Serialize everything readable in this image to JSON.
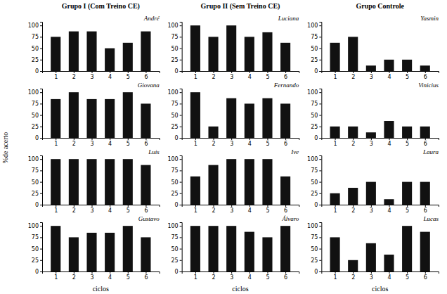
{
  "chart_data": [
    {
      "type": "bar",
      "title": "Grupo I (Com Treino CE)",
      "subtitle": "André",
      "ylabel": "%de acerto",
      "x": [
        1,
        2,
        3,
        4,
        5,
        6
      ],
      "values": [
        75,
        87,
        87,
        50,
        62,
        87
      ],
      "color": "#111111",
      "xlim": [
        0.25,
        6.75
      ],
      "xticks": [
        1,
        2,
        3,
        4,
        5,
        6
      ],
      "ylim": [
        0,
        108
      ],
      "yticks": [
        0,
        25,
        50,
        75,
        100
      ]
    },
    {
      "type": "bar",
      "subtitle": "Giovana",
      "x": [
        1,
        2,
        3,
        4,
        5,
        6
      ],
      "values": [
        85,
        100,
        85,
        85,
        100,
        75
      ],
      "color": "#111111",
      "xlim": [
        0.25,
        6.75
      ],
      "xticks": [
        1,
        2,
        3,
        4,
        5,
        6
      ],
      "ylim": [
        0,
        108
      ],
      "yticks": [
        0,
        25,
        50,
        75,
        100
      ]
    },
    {
      "type": "bar",
      "subtitle": "Luis",
      "x": [
        1,
        2,
        3,
        4,
        5,
        6
      ],
      "values": [
        100,
        100,
        100,
        100,
        100,
        87
      ],
      "color": "#111111",
      "xlim": [
        0.25,
        6.75
      ],
      "xticks": [
        1,
        2,
        3,
        4,
        5,
        6
      ],
      "ylim": [
        0,
        108
      ],
      "yticks": [
        0,
        25,
        50,
        75,
        100
      ]
    },
    {
      "type": "bar",
      "subtitle": "Gustavo",
      "xlabel": "ciclos",
      "x": [
        1,
        2,
        3,
        4,
        5,
        6
      ],
      "values": [
        100,
        75,
        85,
        85,
        100,
        75
      ],
      "color": "#111111",
      "xlim": [
        0.25,
        6.75
      ],
      "xticks": [
        1,
        2,
        3,
        4,
        5,
        6
      ],
      "ylim": [
        0,
        108
      ],
      "yticks": [
        0,
        25,
        50,
        75,
        100
      ]
    },
    {
      "type": "bar",
      "title": "Grupo II (Sem Treino CE)",
      "subtitle": "Luciana",
      "x": [
        1,
        2,
        3,
        4,
        5,
        6
      ],
      "values": [
        100,
        75,
        100,
        75,
        85,
        62
      ],
      "color": "#111111",
      "xlim": [
        0.25,
        6.75
      ],
      "xticks": [
        1,
        2,
        3,
        4,
        5,
        6
      ],
      "ylim": [
        0,
        108
      ],
      "yticks": [
        0,
        25,
        50,
        75,
        100
      ]
    },
    {
      "type": "bar",
      "subtitle": "Fernando",
      "x": [
        1,
        2,
        3,
        4,
        5,
        6
      ],
      "values": [
        100,
        25,
        87,
        75,
        87,
        75
      ],
      "color": "#111111",
      "xlim": [
        0.25,
        6.75
      ],
      "xticks": [
        1,
        2,
        3,
        4,
        5,
        6
      ],
      "ylim": [
        0,
        108
      ],
      "yticks": [
        0,
        25,
        50,
        75,
        100
      ]
    },
    {
      "type": "bar",
      "subtitle": "Ive",
      "x": [
        1,
        2,
        3,
        4,
        5,
        6
      ],
      "values": [
        62,
        87,
        100,
        100,
        100,
        62
      ],
      "color": "#111111",
      "xlim": [
        0.25,
        6.75
      ],
      "xticks": [
        1,
        2,
        3,
        4,
        5,
        6
      ],
      "ylim": [
        0,
        108
      ],
      "yticks": [
        0,
        25,
        50,
        75,
        100
      ]
    },
    {
      "type": "bar",
      "subtitle": "Álvaro",
      "xlabel": "ciclos",
      "x": [
        1,
        2,
        3,
        4,
        5,
        6
      ],
      "values": [
        100,
        100,
        100,
        87,
        75,
        100
      ],
      "color": "#111111",
      "xlim": [
        0.25,
        6.75
      ],
      "xticks": [
        1,
        2,
        3,
        4,
        5,
        6
      ],
      "ylim": [
        0,
        108
      ],
      "yticks": [
        0,
        25,
        50,
        75,
        100
      ]
    },
    {
      "type": "bar",
      "title": "Grupo Controle",
      "subtitle": "Yasmin",
      "x": [
        1,
        2,
        3,
        4,
        5,
        6
      ],
      "values": [
        62,
        75,
        12,
        25,
        25,
        12
      ],
      "color": "#111111",
      "xlim": [
        0.25,
        6.75
      ],
      "xticks": [
        1,
        2,
        3,
        4,
        5,
        6
      ],
      "ylim": [
        0,
        108
      ],
      "yticks": [
        0,
        25,
        50,
        75,
        100
      ]
    },
    {
      "type": "bar",
      "subtitle": "Vinicius",
      "x": [
        1,
        2,
        3,
        4,
        5,
        6
      ],
      "values": [
        25,
        25,
        12,
        37,
        25,
        25
      ],
      "color": "#111111",
      "xlim": [
        0.25,
        6.75
      ],
      "xticks": [
        1,
        2,
        3,
        4,
        5,
        6
      ],
      "ylim": [
        0,
        108
      ],
      "yticks": [
        0,
        25,
        50,
        75,
        100
      ]
    },
    {
      "type": "bar",
      "subtitle": "Laura",
      "x": [
        1,
        2,
        3,
        4,
        5,
        6
      ],
      "values": [
        25,
        37,
        50,
        12,
        50,
        50
      ],
      "color": "#111111",
      "xlim": [
        0.25,
        6.75
      ],
      "xticks": [
        1,
        2,
        3,
        4,
        5,
        6
      ],
      "ylim": [
        0,
        108
      ],
      "yticks": [
        0,
        25,
        50,
        75,
        100
      ]
    },
    {
      "type": "bar",
      "subtitle": "Lucas",
      "xlabel": "ciclos",
      "x": [
        1,
        2,
        3,
        4,
        5,
        6
      ],
      "values": [
        75,
        25,
        62,
        37,
        100,
        87
      ],
      "color": "#111111",
      "xlim": [
        0.25,
        6.75
      ],
      "xticks": [
        1,
        2,
        3,
        4,
        5,
        6
      ],
      "ylim": [
        0,
        108
      ],
      "yticks": [
        0,
        25,
        50,
        75,
        100
      ]
    }
  ]
}
